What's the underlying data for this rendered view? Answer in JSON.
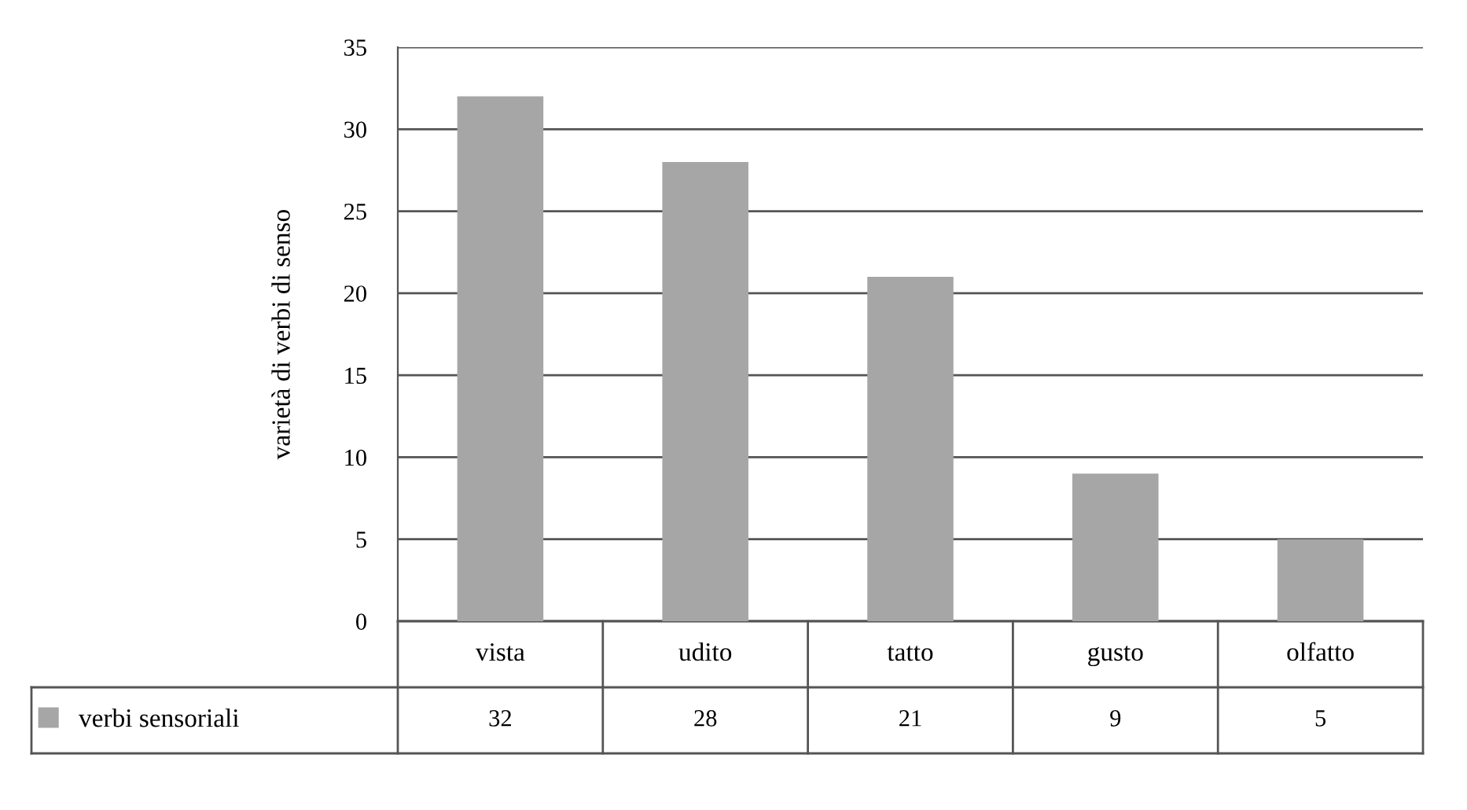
{
  "chart_data": {
    "type": "bar",
    "ylabel": "varietà di verbi di senso",
    "categories": [
      "vista",
      "udito",
      "tatto",
      "gusto",
      "olfatto"
    ],
    "series": [
      {
        "name": "verbi sensoriali",
        "color": "#a6a6a6",
        "values": [
          32,
          28,
          21,
          9,
          5
        ]
      }
    ],
    "ylim": [
      0,
      35
    ],
    "yticks": [
      0,
      5,
      10,
      15,
      20,
      25,
      30,
      35
    ],
    "grid": "y",
    "legend": "bottom",
    "data_labels": true
  }
}
